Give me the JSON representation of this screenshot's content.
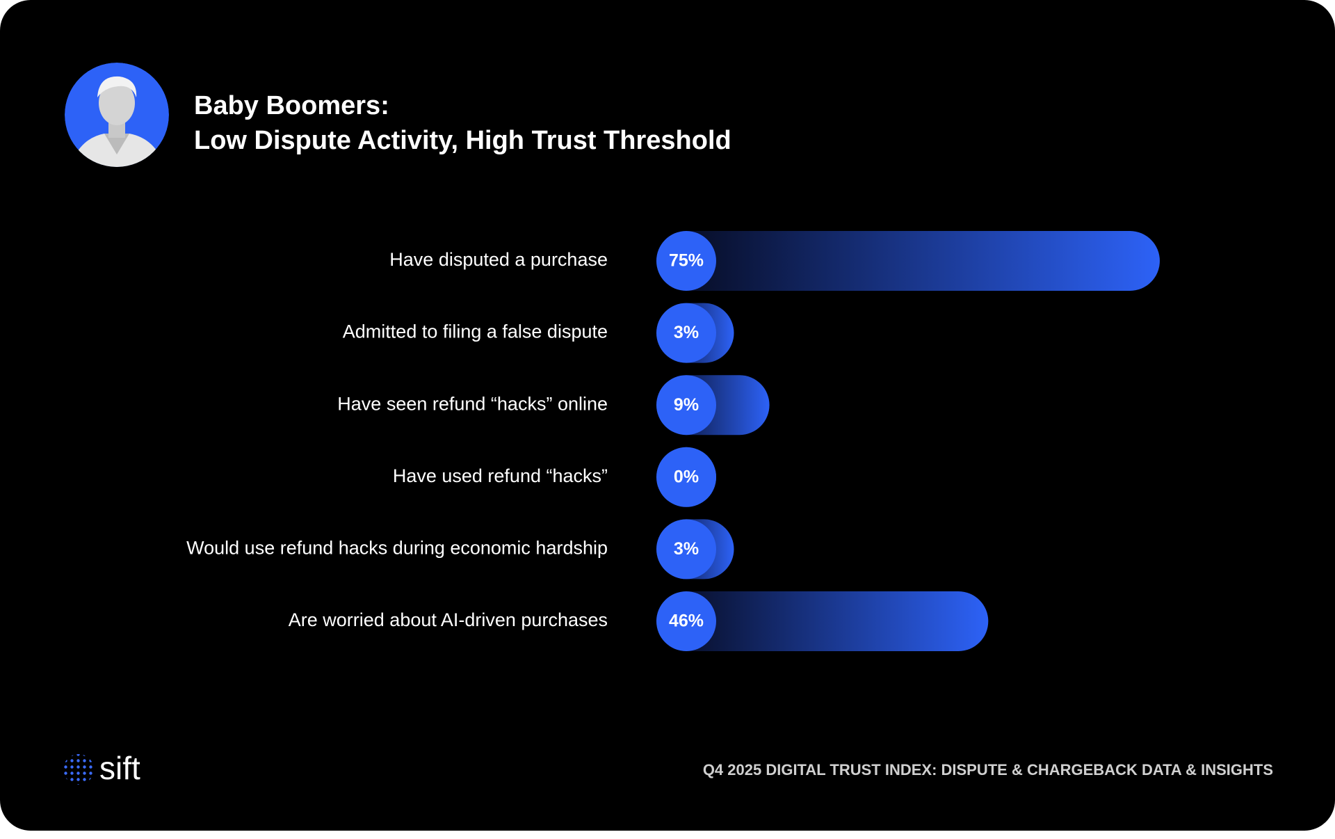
{
  "chart_data": {
    "type": "barh",
    "title": "Baby Boomers:",
    "subtitle": "Low Dispute Activity, High Trust Threshold",
    "categories": [
      "Have disputed a purchase",
      "Admitted to filing a false dispute",
      "Have seen refund “hacks” online",
      "Have used refund “hacks”",
      "Would use refund hacks during economic hardship",
      "Are worried about AI-driven purchases"
    ],
    "values": [
      75,
      3,
      9,
      0,
      3,
      46
    ],
    "value_labels": [
      "75%",
      "3%",
      "9%",
      "0%",
      "3%",
      "46%"
    ],
    "color": "#2d62f7"
  },
  "footer": {
    "logo": "sift",
    "caption": "Q4 2025 DIGITAL TRUST INDEX: DISPUTE & CHARGEBACK DATA & INSIGHTS"
  }
}
